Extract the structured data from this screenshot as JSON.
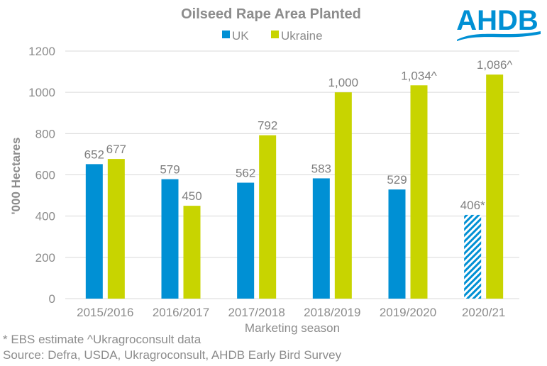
{
  "chart_data": {
    "type": "bar",
    "title": "Oilseed Rape Area Planted",
    "xlabel": "Marketing season",
    "ylabel": "'000 Hectares",
    "ylim": [
      0,
      1200
    ],
    "yticks": [
      0,
      200,
      400,
      600,
      800,
      1000,
      1200
    ],
    "grid": true,
    "legend_position": "top-center",
    "categories": [
      "2015/2016",
      "2016/2017",
      "2017/2018",
      "2018/2019",
      "2019/2020",
      "2020/21"
    ],
    "series": [
      {
        "name": "UK",
        "color": "#0090d4",
        "values": [
          652,
          579,
          562,
          583,
          529,
          406
        ],
        "labels": [
          "652",
          "579",
          "562",
          "583",
          "529",
          "406*"
        ],
        "hatched": [
          false,
          false,
          false,
          false,
          false,
          true
        ]
      },
      {
        "name": "Ukraine",
        "color": "#c8d400",
        "values": [
          677,
          450,
          792,
          1000,
          1034,
          1086
        ],
        "labels": [
          "677",
          "450",
          "792",
          "1,000",
          "1,034^",
          "1,086^"
        ],
        "hatched": [
          false,
          false,
          false,
          false,
          false,
          false
        ]
      }
    ]
  },
  "logo": {
    "text": "AHDB",
    "color": "#0090d4"
  },
  "notes": {
    "line1": "* EBS estimate ^Ukragroconsult data",
    "line2": "Source: Defra, USDA, Ukragroconsult, AHDB Early Bird Survey"
  }
}
